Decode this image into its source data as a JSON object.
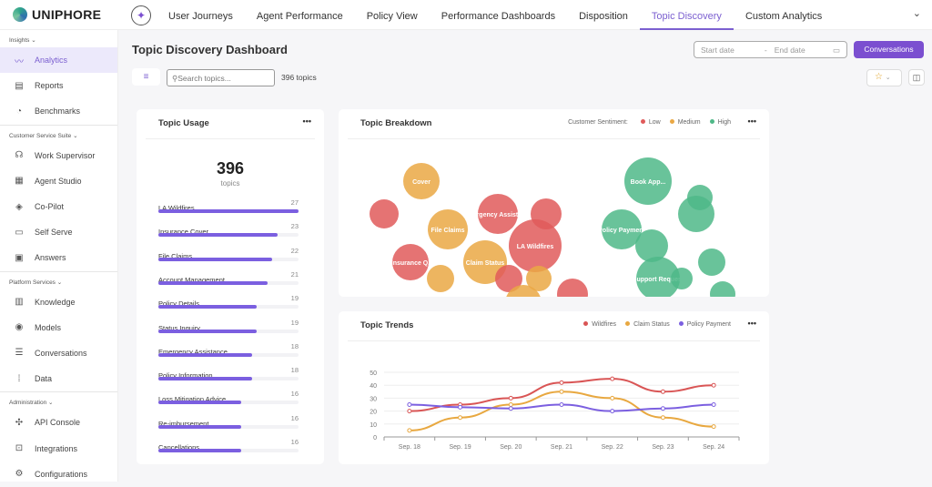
{
  "brand": "UNIPHORE",
  "tabs": [
    "User Journeys",
    "Agent Performance",
    "Policy View",
    "Performance Dashboards",
    "Disposition",
    "Topic Discovery",
    "Custom Analytics"
  ],
  "active_tab": "Topic Discovery",
  "sidebar": {
    "sections": [
      {
        "label": "Insights ⌄",
        "items": [
          {
            "label": "Analytics",
            "icon": "analytics-icon",
            "glyph": "〰",
            "active": true
          },
          {
            "label": "Reports",
            "icon": "reports-icon",
            "glyph": "▤"
          },
          {
            "label": "Benchmarks",
            "icon": "gauge-icon",
            "glyph": "◔"
          }
        ]
      },
      {
        "label": "Customer Service Suite ⌄",
        "items": [
          {
            "label": "Work Supervisor",
            "icon": "headset-icon",
            "glyph": "☊"
          },
          {
            "label": "Agent Studio",
            "icon": "grid-icon",
            "glyph": "▦"
          },
          {
            "label": "Co-Pilot",
            "icon": "copilot-icon",
            "glyph": "◈"
          },
          {
            "label": "Self Serve",
            "icon": "devices-icon",
            "glyph": "▭"
          },
          {
            "label": "Answers",
            "icon": "chat-icon",
            "glyph": "▣"
          }
        ]
      },
      {
        "label": "Platform Services ⌄",
        "items": [
          {
            "label": "Knowledge",
            "icon": "book-icon",
            "glyph": "▥"
          },
          {
            "label": "Models",
            "icon": "model-icon",
            "glyph": "◉"
          },
          {
            "label": "Conversations",
            "icon": "message-icon",
            "glyph": "☰"
          },
          {
            "label": "Data",
            "icon": "dots-grid-icon",
            "glyph": "⁞"
          }
        ]
      },
      {
        "label": "Administration ⌄",
        "items": [
          {
            "label": "API Console",
            "icon": "api-icon",
            "glyph": "✣"
          },
          {
            "label": "Integrations",
            "icon": "code-icon",
            "glyph": "⊡"
          },
          {
            "label": "Configurations",
            "icon": "gear-icon",
            "glyph": "⚙"
          }
        ]
      }
    ]
  },
  "page": {
    "title": "Topic Discovery Dashboard",
    "search_placeholder": "Search topics...",
    "topic_count": "396 topics",
    "start_date": "Start date",
    "end_date": "End date",
    "conversations_button": "Conversations"
  },
  "usage": {
    "title": "Topic Usage",
    "total": "396",
    "total_label": "topics",
    "max": 27,
    "items": [
      {
        "name": "LA Wildfires",
        "value": 27
      },
      {
        "name": "Insurance Cover",
        "value": 23
      },
      {
        "name": "File Claims",
        "value": 22
      },
      {
        "name": "Account Management",
        "value": 21
      },
      {
        "name": "Policy Details",
        "value": 19
      },
      {
        "name": "Status Inquiry",
        "value": 19
      },
      {
        "name": "Emergency Assistance",
        "value": 18
      },
      {
        "name": "Policy Information",
        "value": 18
      },
      {
        "name": "Loss Mitigation Advice",
        "value": 16
      },
      {
        "name": "Re-imbursement",
        "value": 16
      },
      {
        "name": "Cancellations",
        "value": 16
      }
    ]
  },
  "chart_data": [
    {
      "type": "bubble",
      "title": "Topic Breakdown",
      "legend_title": "Customer Sentiment:",
      "legend": [
        {
          "name": "Low",
          "color": "#e05a5a"
        },
        {
          "name": "Medium",
          "color": "#eaa844"
        },
        {
          "name": "High",
          "color": "#4fb888"
        }
      ],
      "bubbles": [
        {
          "label": "Cover",
          "sentiment": "Medium"
        },
        {
          "label": "",
          "sentiment": "Low"
        },
        {
          "label": "File Claims",
          "sentiment": "Medium"
        },
        {
          "label": "Emergency Assistance",
          "sentiment": "Low"
        },
        {
          "label": "",
          "sentiment": "Low"
        },
        {
          "label": "LA Wildfires",
          "sentiment": "Low"
        },
        {
          "label": "Insurance Q.",
          "sentiment": "Low"
        },
        {
          "label": "",
          "sentiment": "Medium"
        },
        {
          "label": "Claim Status",
          "sentiment": "Medium"
        },
        {
          "label": "",
          "sentiment": "Low"
        },
        {
          "label": "",
          "sentiment": "Medium"
        },
        {
          "label": "",
          "sentiment": "Medium"
        },
        {
          "label": "",
          "sentiment": "Low"
        },
        {
          "label": "Book App...",
          "sentiment": "High"
        },
        {
          "label": "",
          "sentiment": "High"
        },
        {
          "label": "",
          "sentiment": "High"
        },
        {
          "label": "Policy Payment",
          "sentiment": "High"
        },
        {
          "label": "",
          "sentiment": "High"
        },
        {
          "label": "Support Request",
          "sentiment": "High"
        },
        {
          "label": "",
          "sentiment": "High"
        },
        {
          "label": "",
          "sentiment": "High"
        },
        {
          "label": "",
          "sentiment": "High"
        }
      ]
    },
    {
      "type": "line",
      "title": "Topic Trends",
      "categories": [
        "Sep. 18",
        "Sep. 19",
        "Sep. 20",
        "Sep. 21",
        "Sep. 22",
        "Sep. 23",
        "Sep. 24"
      ],
      "ylim": [
        0,
        50
      ],
      "yticks": [
        0,
        10,
        20,
        30,
        40,
        50
      ],
      "grid": true,
      "legend": "top-right",
      "series": [
        {
          "name": "Wildfires",
          "color": "#d95555",
          "values": [
            20,
            25,
            30,
            42,
            45,
            35,
            40
          ]
        },
        {
          "name": "Claim Status",
          "color": "#e8a840",
          "values": [
            5,
            15,
            25,
            35,
            30,
            15,
            8
          ]
        },
        {
          "name": "Policy Payment",
          "color": "#7b5fe0",
          "values": [
            25,
            23,
            22,
            25,
            20,
            22,
            25
          ]
        }
      ]
    }
  ]
}
